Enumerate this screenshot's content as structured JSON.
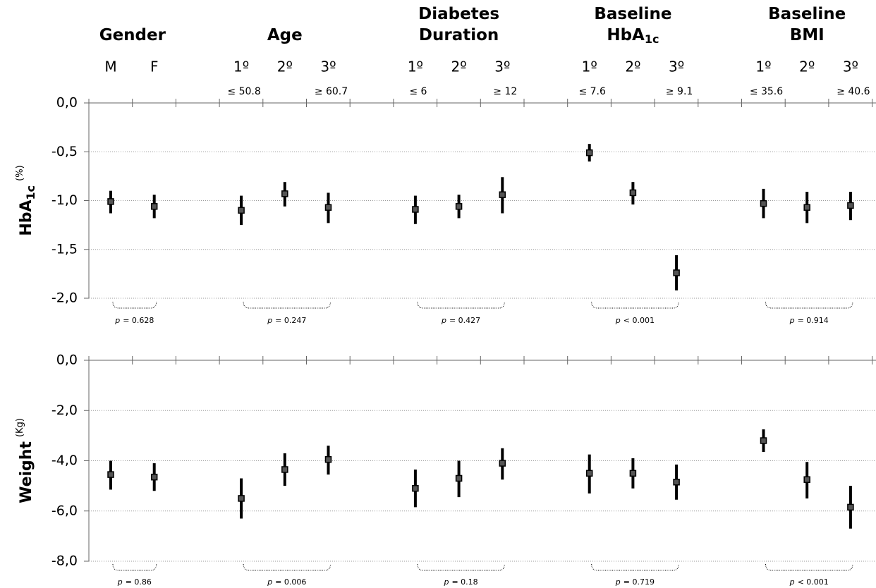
{
  "groups": [
    {
      "title": [
        "Gender"
      ],
      "subgroups": [
        "M",
        "F"
      ]
    },
    {
      "title": [
        "Age"
      ],
      "subgroups": [
        "1º",
        "2º",
        "3º"
      ],
      "thresholds": [
        "≤ 50.8",
        null,
        "≥ 60.7"
      ]
    },
    {
      "title": [
        "Diabetes",
        "Duration"
      ],
      "subgroups": [
        "1º",
        "2º",
        "3º"
      ],
      "thresholds": [
        "≤ 6",
        null,
        "≥ 12"
      ]
    },
    {
      "title": [
        "Baseline",
        "HbA"
      ],
      "title_sub": "1c",
      "subgroups": [
        "1º",
        "2º",
        "3º"
      ],
      "thresholds": [
        "≤ 7.6",
        null,
        "≥ 9.1"
      ]
    },
    {
      "title": [
        "Baseline",
        "BMI"
      ],
      "subgroups": [
        "1º",
        "2º",
        "3º"
      ],
      "thresholds": [
        "≤ 35.6",
        null,
        "≥ 40.6"
      ]
    }
  ],
  "p_symbol": "p",
  "chart_data": [
    {
      "type": "errorbar",
      "ylabel": {
        "text": "HbA",
        "sub": "1c",
        "unit": "(%)"
      },
      "ylim": [
        -2,
        0
      ],
      "yticks": [
        {
          "value": -2,
          "label": "-2,0"
        },
        {
          "value": -1.5,
          "label": "-1,5"
        },
        {
          "value": -1,
          "label": "-1,0"
        },
        {
          "value": -0.5,
          "label": "-0,5"
        },
        {
          "value": 0,
          "label": "0,0"
        }
      ],
      "grid": true,
      "color": "#000000",
      "marker_color": "#555555",
      "values": [
        -1.01,
        -1.06,
        -1.1,
        -0.93,
        -1.07,
        -1.09,
        -1.06,
        -0.94,
        -0.51,
        -0.92,
        -1.74,
        -1.03,
        -1.07,
        -1.05
      ],
      "lower": [
        -1.13,
        -1.18,
        -1.25,
        -1.06,
        -1.23,
        -1.24,
        -1.18,
        -1.13,
        -0.6,
        -1.04,
        -1.92,
        -1.18,
        -1.23,
        -1.2
      ],
      "upper": [
        -0.9,
        -0.94,
        -0.95,
        -0.81,
        -0.92,
        -0.95,
        -0.94,
        -0.76,
        -0.42,
        -0.81,
        -1.56,
        -0.88,
        -0.91,
        -0.91
      ],
      "p_values": [
        "= 0.628",
        "= 0.247",
        "= 0.427",
        "< 0.001",
        "= 0.914"
      ]
    },
    {
      "type": "errorbar",
      "ylabel": {
        "text": "Weight",
        "unit": "(Kg)"
      },
      "ylim": [
        -8,
        0
      ],
      "yticks": [
        {
          "value": -8,
          "label": "-8,0"
        },
        {
          "value": -6,
          "label": "-6,0"
        },
        {
          "value": -4,
          "label": "-4,0"
        },
        {
          "value": -2,
          "label": "-2,0"
        },
        {
          "value": 0,
          "label": "0,0"
        }
      ],
      "grid": true,
      "color": "#000000",
      "marker_color": "#555555",
      "values": [
        -4.55,
        -4.65,
        -5.5,
        -4.35,
        -3.95,
        -5.1,
        -4.7,
        -4.1,
        -4.5,
        -4.5,
        -4.85,
        -3.2,
        -4.75,
        -5.85
      ],
      "lower": [
        -5.15,
        -5.2,
        -6.3,
        -5.0,
        -4.55,
        -5.85,
        -5.45,
        -4.75,
        -5.3,
        -5.1,
        -5.55,
        -3.65,
        -5.5,
        -6.7
      ],
      "upper": [
        -4.0,
        -4.1,
        -4.7,
        -3.7,
        -3.4,
        -4.35,
        -4.0,
        -3.5,
        -3.75,
        -3.9,
        -4.15,
        -2.75,
        -4.05,
        -5.0
      ],
      "p_values": [
        "= 0.86",
        "= 0.006",
        "= 0.18",
        "= 0.719",
        "< 0.001"
      ]
    }
  ]
}
